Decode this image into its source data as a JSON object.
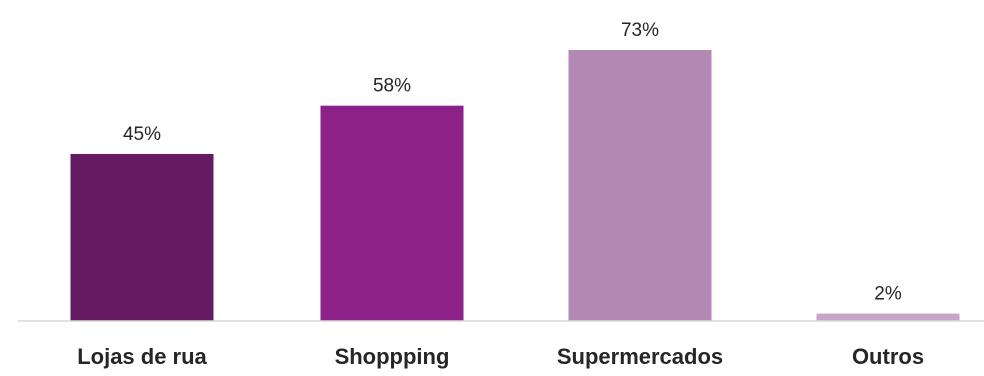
{
  "chart_data": {
    "type": "bar",
    "categories": [
      "Lojas de rua",
      "Shoppping",
      "Supermercados",
      "Outros"
    ],
    "values": [
      45,
      58,
      73,
      2
    ],
    "data_labels": [
      "45%",
      "58%",
      "73%",
      "2%"
    ],
    "colors": [
      "#641b61",
      "#8c2289",
      "#b388b3",
      "#c9a4c9"
    ],
    "title": "",
    "xlabel": "",
    "ylabel": "",
    "ylim": [
      0,
      80
    ],
    "grid": false,
    "legend": "none"
  }
}
